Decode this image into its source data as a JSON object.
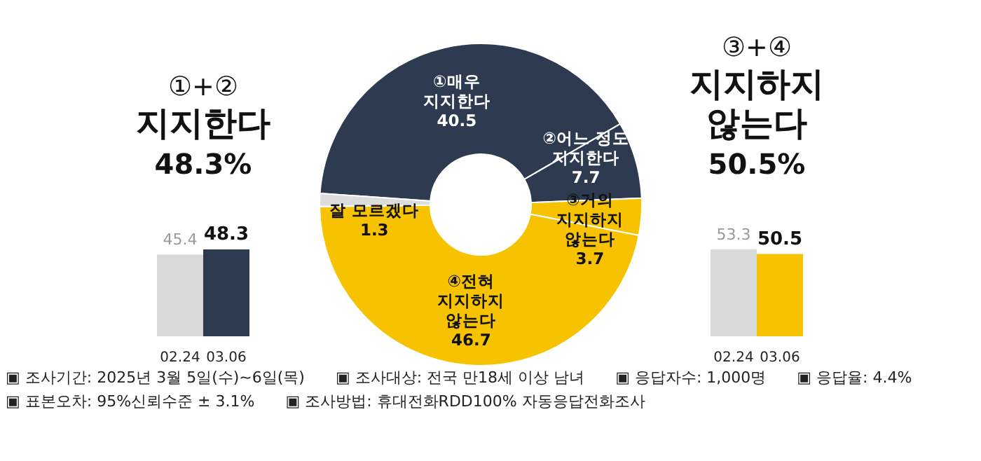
{
  "chart_data": [
    {
      "type": "bar",
      "title": "①+②",
      "subtitle": "지지한다",
      "annotations": [
        "48.3%"
      ],
      "categories": [
        "02.24",
        "03.06"
      ],
      "values": [
        45.4,
        48.3
      ],
      "colors": [
        "#d9d9d9",
        "#2d3a4f"
      ],
      "data_labels": true
    },
    {
      "type": "donut",
      "categories": [
        "①매우 지지한다",
        "②어느 정도 지지한다",
        "③거의 지지하지 않는다",
        "④전혀 지지하지 않는다",
        "잘 모르겠다"
      ],
      "values": [
        40.5,
        7.7,
        3.7,
        46.7,
        1.3
      ],
      "colors": [
        "#2d3a4f",
        "#2d3a4f",
        "#f7c300",
        "#f7c300",
        "#dcdcdc"
      ],
      "data_labels": true,
      "annotations": [
        "▣ 조사기간: 2025년 3월 5일(수)~6일(목)",
        "▣ 조사대상: 전국 만18세 이상 남녀",
        "▣ 응답자수: 1,000명",
        "▣ 응답율: 4.4%",
        "▣ 표본오차: 95%신뢰수준 ± 3.1%",
        "▣ 조사방법: 휴대전화RDD100% 자동응답전화조사"
      ]
    },
    {
      "type": "bar",
      "title": "③+④",
      "subtitle": "지지하지 않는다",
      "annotations": [
        "50.5%"
      ],
      "categories": [
        "02.24",
        "03.06"
      ],
      "values": [
        53.3,
        50.5
      ],
      "colors": [
        "#d9d9d9",
        "#f7c300"
      ],
      "data_labels": true
    }
  ]
}
